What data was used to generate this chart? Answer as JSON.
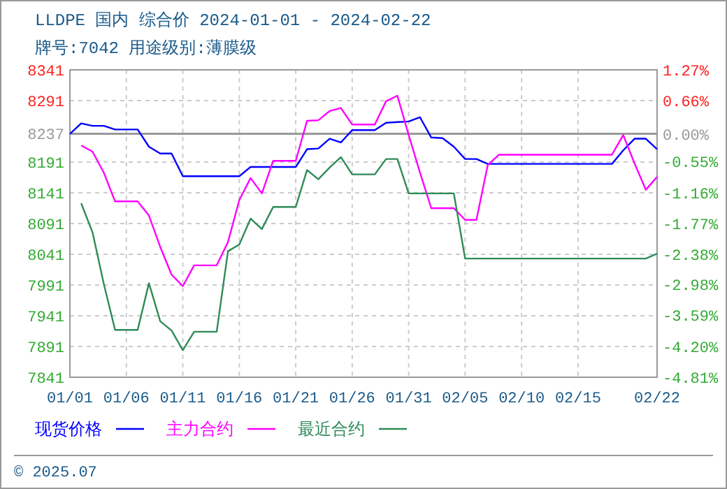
{
  "chart_data": {
    "type": "line",
    "title": "LLDPE 国内 综合价 2024-01-01 - 2024-02-22",
    "subtitle": "牌号:7042 用途级别:薄膜级",
    "xlim": [
      "2024-01-01",
      "2024-02-22"
    ],
    "xticks": [
      {
        "value": "2024-01-01",
        "label": "01/01"
      },
      {
        "value": "2024-01-06",
        "label": "01/06"
      },
      {
        "value": "2024-01-11",
        "label": "01/11"
      },
      {
        "value": "2024-01-16",
        "label": "01/16"
      },
      {
        "value": "2024-01-21",
        "label": "01/21"
      },
      {
        "value": "2024-01-26",
        "label": "01/26"
      },
      {
        "value": "2024-01-31",
        "label": "01/31"
      },
      {
        "value": "2024-02-05",
        "label": "02/05"
      },
      {
        "value": "2024-02-10",
        "label": "02/10"
      },
      {
        "value": "2024-02-15",
        "label": "02/15"
      },
      {
        "value": "2024-02-22",
        "label": "02/22"
      }
    ],
    "ylim": [
      7841,
      8341
    ],
    "yticks": [
      7841,
      7891,
      7941,
      7991,
      8041,
      8091,
      8141,
      8191,
      8237,
      8291,
      8341
    ],
    "y2lim": [
      -4.81,
      1.27
    ],
    "y2ticks": [
      {
        "value": -4.81,
        "label": "-4.81%"
      },
      {
        "value": -4.2,
        "label": "-4.20%"
      },
      {
        "value": -3.59,
        "label": "-3.59%"
      },
      {
        "value": -2.98,
        "label": "-2.98%"
      },
      {
        "value": -2.38,
        "label": "-2.38%"
      },
      {
        "value": -1.77,
        "label": "-1.77%"
      },
      {
        "value": -1.16,
        "label": "-1.16%"
      },
      {
        "value": -0.55,
        "label": "-0.55%"
      },
      {
        "value": 0,
        "label": "0.00%"
      },
      {
        "value": 0.66,
        "label": "0.66%"
      },
      {
        "value": 1.27,
        "label": "1.27%"
      }
    ],
    "grid": true,
    "legend": "bottom",
    "line_style": "solid",
    "ref_lines": [
      {
        "axis": "y",
        "value": 8237,
        "color": "#999999"
      }
    ],
    "annotations": [
      "© 2025.07"
    ],
    "series": [
      {
        "name": "现货价格",
        "color": "#0000ff",
        "x": [
          "2024-01-01",
          "2024-01-02",
          "2024-01-03",
          "2024-01-04",
          "2024-01-05",
          "2024-01-07",
          "2024-01-08",
          "2024-01-09",
          "2024-01-10",
          "2024-01-11",
          "2024-01-16",
          "2024-01-17",
          "2024-01-21",
          "2024-01-22",
          "2024-01-23",
          "2024-01-24",
          "2024-01-25",
          "2024-01-26",
          "2024-01-28",
          "2024-01-29",
          "2024-01-30",
          "2024-01-31",
          "2024-02-01",
          "2024-02-02",
          "2024-02-03",
          "2024-02-04",
          "2024-02-05",
          "2024-02-06",
          "2024-02-07",
          "2024-02-18",
          "2024-02-19",
          "2024-02-20",
          "2024-02-21",
          "2024-02-22"
        ],
        "values": [
          8237,
          8254,
          8250,
          8250,
          8244,
          8244,
          8216,
          8205,
          8205,
          8168,
          8168,
          8183,
          8183,
          8212,
          8213,
          8229,
          8223,
          8243,
          8243,
          8255,
          8256,
          8257,
          8264,
          8231,
          8230,
          8216,
          8196,
          8196,
          8188,
          8188,
          8210,
          8229,
          8229,
          8212
        ]
      },
      {
        "name": "主力合约",
        "color": "#ff00ff",
        "x": [
          "2024-01-02",
          "2024-01-03",
          "2024-01-04",
          "2024-01-05",
          "2024-01-07",
          "2024-01-08",
          "2024-01-09",
          "2024-01-10",
          "2024-01-11",
          "2024-01-12",
          "2024-01-14",
          "2024-01-15",
          "2024-01-16",
          "2024-01-17",
          "2024-01-18",
          "2024-01-19",
          "2024-01-21",
          "2024-01-22",
          "2024-01-23",
          "2024-01-24",
          "2024-01-25",
          "2024-01-26",
          "2024-01-28",
          "2024-01-29",
          "2024-01-30",
          "2024-01-31",
          "2024-02-01",
          "2024-02-02",
          "2024-02-04",
          "2024-02-05",
          "2024-02-06",
          "2024-02-07",
          "2024-02-08",
          "2024-02-18",
          "2024-02-19",
          "2024-02-20",
          "2024-02-21",
          "2024-02-22"
        ],
        "values": [
          8218,
          8208,
          8174,
          8127,
          8127,
          8104,
          8053,
          8008,
          7989,
          8023,
          8023,
          8061,
          8129,
          8165,
          8140,
          8193,
          8193,
          8258,
          8259,
          8274,
          8279,
          8252,
          8252,
          8290,
          8299,
          8235,
          8174,
          8116,
          8116,
          8097,
          8097,
          8186,
          8203,
          8203,
          8235,
          8189,
          8146,
          8167
        ]
      },
      {
        "name": "最近合约",
        "color": "#2e8b57",
        "x": [
          "2024-01-02",
          "2024-01-03",
          "2024-01-04",
          "2024-01-05",
          "2024-01-07",
          "2024-01-08",
          "2024-01-09",
          "2024-01-10",
          "2024-01-11",
          "2024-01-12",
          "2024-01-14",
          "2024-01-15",
          "2024-01-16",
          "2024-01-17",
          "2024-01-18",
          "2024-01-19",
          "2024-01-21",
          "2024-01-22",
          "2024-01-23",
          "2024-01-24",
          "2024-01-25",
          "2024-01-26",
          "2024-01-28",
          "2024-01-29",
          "2024-01-30",
          "2024-01-31",
          "2024-02-04",
          "2024-02-05",
          "2024-02-21",
          "2024-02-22"
        ],
        "values": [
          8124,
          8077,
          7993,
          7918,
          7918,
          7994,
          7932,
          7917,
          7885,
          7915,
          7915,
          8046,
          8057,
          8099,
          8082,
          8118,
          8118,
          8178,
          8163,
          8182,
          8199,
          8171,
          8171,
          8196,
          8196,
          8140,
          8140,
          8034,
          8034,
          8042
        ]
      }
    ]
  }
}
